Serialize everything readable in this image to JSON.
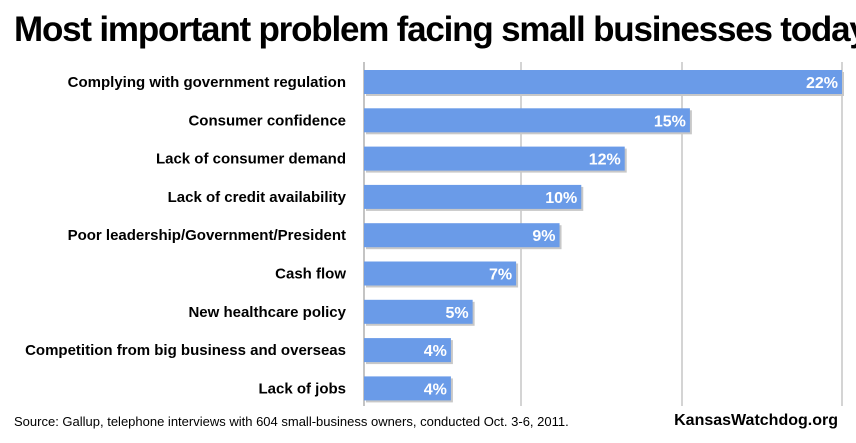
{
  "chart_data": {
    "type": "bar",
    "orientation": "horizontal",
    "title": "Most important problem facing small businesses today",
    "categories": [
      "Complying with government regulation",
      "Consumer confidence",
      "Lack of consumer demand",
      "Lack of credit availability",
      "Poor leadership/Government/President",
      "Cash flow",
      "New healthcare policy",
      "Competition from big business and overseas",
      "Lack of jobs"
    ],
    "values": [
      22,
      15,
      12,
      10,
      9,
      7,
      5,
      4,
      4
    ],
    "value_labels": [
      "22%",
      "15%",
      "12%",
      "10%",
      "9%",
      "7%",
      "5%",
      "4%",
      "4%"
    ],
    "xlim": [
      0,
      22
    ],
    "grid": true,
    "axis_ticks_shown": false,
    "bar_color": "#6a9be8"
  },
  "footer": {
    "source": "Source: Gallup, telephone interviews with 604 small-business owners, conducted Oct. 3-6, 2011.",
    "credit": "KansasWatchdog.org"
  }
}
